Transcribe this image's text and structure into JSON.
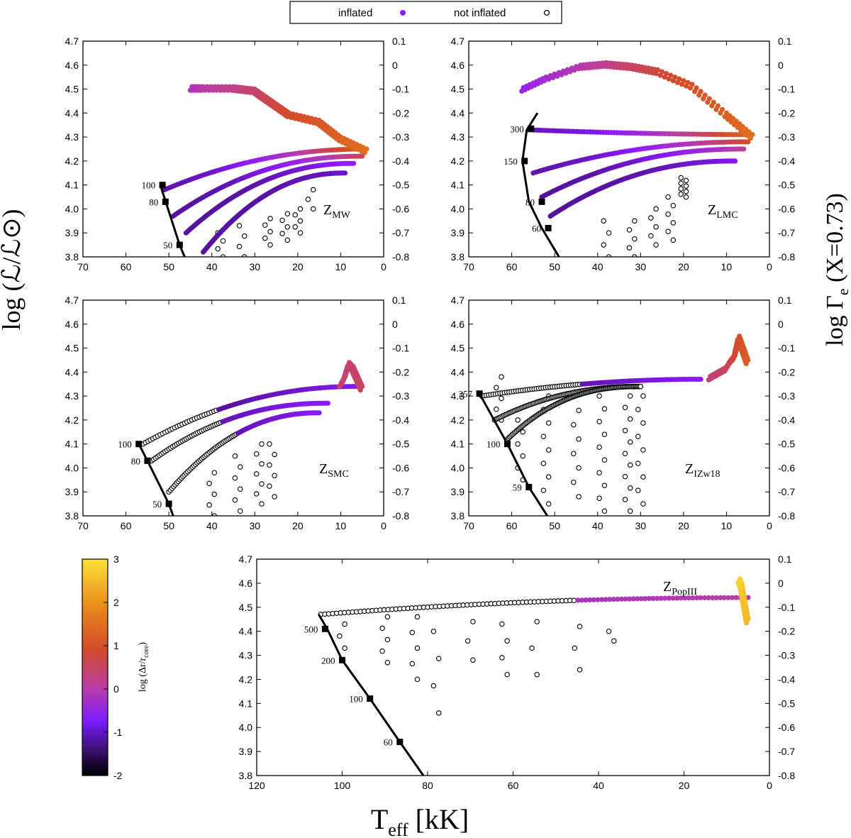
{
  "legend": {
    "inflated": "inflated",
    "not_inflated": "not inflated"
  },
  "axis_labels": {
    "y_left": "log (ℒ/ℒ⊙)",
    "y_right_main": "log Γ",
    "y_right_sub": "e",
    "y_right_tail": " (X=0.73)",
    "x_main": "T",
    "x_sub": "eff",
    "x_tail": " [kK]"
  },
  "colorbar": {
    "label_main": "log (Δr/r",
    "label_sub": "core",
    "label_tail": ")",
    "ticks": [
      "3",
      "2",
      "1",
      "0",
      "-1",
      "-2"
    ],
    "range": [
      -2,
      3
    ],
    "colors": [
      "#000000",
      "#3b0f70",
      "#8c1aff",
      "#b83ca8",
      "#d14a2b",
      "#e67e1a",
      "#fbe336"
    ]
  },
  "chart_data": [
    {
      "type": "scatter",
      "panel": "MW",
      "title_main": "Z",
      "title_sub": "MW",
      "xlim": [
        70,
        0
      ],
      "ylim": [
        3.8,
        4.7
      ],
      "x_ticks": [
        "70",
        "60",
        "50",
        "40",
        "30",
        "20",
        "10",
        "0"
      ],
      "y_ticks": [
        "3.8",
        "3.9",
        "4.0",
        "4.1",
        "4.2",
        "4.3",
        "4.4",
        "4.5",
        "4.6",
        "4.7"
      ],
      "y2_ticks": [
        "-0.8",
        "-0.7",
        "-0.6",
        "-0.5",
        "-0.4",
        "-0.3",
        "-0.2",
        "-0.1",
        "0",
        "0.1"
      ],
      "zams": {
        "x": [
          52,
          47.5,
          44
        ],
        "y": [
          4.1,
          3.85,
          3.7
        ]
      },
      "zams_markers": [
        {
          "label": "100",
          "x": 51.5,
          "y": 4.1
        },
        {
          "label": "80",
          "x": 50.8,
          "y": 4.03
        },
        {
          "label": "50",
          "x": 47.5,
          "y": 3.85
        }
      ],
      "tracks": [
        {
          "x0": 51,
          "y0": 4.08,
          "x1": 4,
          "y1": 4.25,
          "w": 0.25,
          "curv": 0.55,
          "c0": -1.1,
          "c1": 1.6
        },
        {
          "x0": 49,
          "y0": 3.97,
          "x1": 5,
          "y1": 4.22,
          "w": 0.32,
          "curv": 0.6,
          "c0": -1.2,
          "c1": 0.6
        },
        {
          "x0": 46,
          "y0": 3.9,
          "x1": 7,
          "y1": 4.19,
          "w": 0.38,
          "curv": 0.6,
          "c0": -1.2,
          "c1": -0.6
        },
        {
          "x0": 42,
          "y0": 3.82,
          "x1": 9,
          "y1": 4.15,
          "w": 0.42,
          "curv": 0.6,
          "c0": -1.2,
          "c1": -1.0
        }
      ],
      "hook": {
        "x": [
          4,
          10,
          15,
          22,
          26,
          30,
          35,
          42,
          45
        ],
        "y": [
          4.25,
          4.3,
          4.37,
          4.4,
          4.45,
          4.5,
          4.51,
          4.51,
          4.51
        ],
        "c0": 1.6,
        "c1": -0.2
      },
      "open_columns": [
        {
          "x": 38,
          "y0": 3.8,
          "y1": 3.9,
          "n": 4
        },
        {
          "x": 33,
          "y0": 3.8,
          "y1": 3.93,
          "n": 4
        },
        {
          "x": 27,
          "y0": 3.85,
          "y1": 3.96,
          "n": 5
        },
        {
          "x": 23,
          "y0": 3.87,
          "y1": 3.98,
          "n": 5
        },
        {
          "x": 20,
          "y0": 3.9,
          "y1": 4.0,
          "n": 5
        },
        {
          "x": 17,
          "y0": 4.0,
          "y1": 4.08,
          "n": 3
        }
      ]
    },
    {
      "type": "scatter",
      "panel": "LMC",
      "title_main": "Z",
      "title_sub": "LMC",
      "xlim": [
        70,
        0
      ],
      "ylim": [
        3.8,
        4.7
      ],
      "x_ticks": [
        "70",
        "60",
        "50",
        "40",
        "30",
        "20",
        "10",
        "0"
      ],
      "y_ticks": [
        "3.8",
        "3.9",
        "4.0",
        "4.1",
        "4.2",
        "4.3",
        "4.4",
        "4.5",
        "4.6",
        "4.7"
      ],
      "y2_ticks": [
        "-0.8",
        "-0.7",
        "-0.6",
        "-0.5",
        "-0.4",
        "-0.3",
        "-0.2",
        "-0.1",
        "0",
        "0.1"
      ],
      "zams": {
        "x": [
          53,
          56,
          57.5,
          56.5,
          54
        ],
        "y": [
          3.92,
          4.03,
          4.2,
          4.33,
          4.4
        ]
      },
      "zams_tail": {
        "x": [
          53,
          49,
          46
        ],
        "y": [
          3.92,
          3.8,
          3.7
        ]
      },
      "zams_markers": [
        {
          "label": "300",
          "x": 55.5,
          "y": 4.335
        },
        {
          "label": "150",
          "x": 57,
          "y": 4.2
        },
        {
          "label": "80",
          "x": 53,
          "y": 4.03
        },
        {
          "label": "60",
          "x": 51.5,
          "y": 3.92
        }
      ],
      "tracks": [
        {
          "x0": 56,
          "y0": 4.33,
          "x1": 4,
          "y1": 4.31,
          "w": 0.3,
          "curv": 0.4,
          "c0": -1.0,
          "c1": 1.6
        },
        {
          "x0": 55,
          "y0": 4.15,
          "x1": 5,
          "y1": 4.28,
          "w": 0.3,
          "curv": 0.55,
          "c0": -1.1,
          "c1": 0.9
        },
        {
          "x0": 53,
          "y0": 4.05,
          "x1": 6,
          "y1": 4.25,
          "w": 0.35,
          "curv": 0.6,
          "c0": -1.2,
          "c1": 0.1
        },
        {
          "x0": 51,
          "y0": 3.97,
          "x1": 8,
          "y1": 4.2,
          "w": 0.4,
          "curv": 0.6,
          "c0": -1.2,
          "c1": -0.8
        }
      ],
      "hook": {
        "x": [
          4,
          10,
          18,
          26,
          32,
          38,
          44,
          52,
          58
        ],
        "y": [
          4.31,
          4.4,
          4.52,
          4.58,
          4.6,
          4.61,
          4.6,
          4.55,
          4.5
        ],
        "c0": 1.6,
        "c1": -0.6
      },
      "open_columns": [
        {
          "x": 38,
          "y0": 3.8,
          "y1": 3.95,
          "n": 4
        },
        {
          "x": 32,
          "y0": 3.8,
          "y1": 3.95,
          "n": 5
        },
        {
          "x": 27,
          "y0": 3.85,
          "y1": 4.0,
          "n": 5
        },
        {
          "x": 23,
          "y0": 3.87,
          "y1": 4.05,
          "n": 6
        },
        {
          "x": 20,
          "y0": 4.05,
          "y1": 4.13,
          "n": 8
        }
      ]
    },
    {
      "type": "scatter",
      "panel": "SMC",
      "title_main": "Z",
      "title_sub": "SMC",
      "xlim": [
        70,
        0
      ],
      "ylim": [
        3.8,
        4.7
      ],
      "x_ticks": [
        "70",
        "60",
        "50",
        "40",
        "30",
        "20",
        "10",
        "0"
      ],
      "y_ticks": [
        "3.8",
        "3.9",
        "4.0",
        "4.1",
        "4.2",
        "4.3",
        "4.4",
        "4.5",
        "4.6",
        "4.7"
      ],
      "y2_ticks": [
        "-0.8",
        "-0.7",
        "-0.6",
        "-0.5",
        "-0.4",
        "-0.3",
        "-0.2",
        "-0.1",
        "0",
        "0.1"
      ],
      "zams": {
        "x": [
          57,
          55,
          50,
          47
        ],
        "y": [
          4.1,
          4.03,
          3.85,
          3.7
        ]
      },
      "zams_markers": [
        {
          "label": "100",
          "x": 57,
          "y": 4.1
        },
        {
          "label": "80",
          "x": 55,
          "y": 4.03
        },
        {
          "label": "50",
          "x": 50,
          "y": 3.85
        }
      ],
      "tracks": [
        {
          "x0": 56,
          "y0": 4.1,
          "x1": 6,
          "y1": 4.34,
          "w": 0.35,
          "curv": 0.55,
          "c0": 9,
          "c1": -1.2
        },
        {
          "x0": 54,
          "y0": 4.03,
          "x1": 13,
          "y1": 4.27,
          "w": 0.4,
          "curv": 0.6,
          "c0": 9,
          "c1": -1.1
        },
        {
          "x0": 50,
          "y0": 3.9,
          "x1": 15,
          "y1": 4.23,
          "w": 0.45,
          "curv": 0.6,
          "c0": 9,
          "c1": -1.1
        }
      ],
      "hook": {
        "x": [
          5,
          6,
          7,
          8,
          9,
          10
        ],
        "y": [
          4.34,
          4.38,
          4.42,
          4.44,
          4.38,
          4.35
        ],
        "c0": 0.5,
        "c1": 0.4
      },
      "open_columns": [
        {
          "x": 40,
          "y0": 3.8,
          "y1": 3.98,
          "n": 5
        },
        {
          "x": 34,
          "y0": 3.82,
          "y1": 4.05,
          "n": 6
        },
        {
          "x": 29,
          "y0": 3.85,
          "y1": 4.1,
          "n": 7
        },
        {
          "x": 26,
          "y0": 3.88,
          "y1": 4.1,
          "n": 6
        }
      ]
    },
    {
      "type": "scatter",
      "panel": "IZw18",
      "title_main": "Z",
      "title_sub": "IZw18",
      "xlim": [
        70,
        0
      ],
      "ylim": [
        3.8,
        4.7
      ],
      "x_ticks": [
        "70",
        "60",
        "50",
        "40",
        "30",
        "20",
        "10",
        "0"
      ],
      "y_ticks": [
        "3.8",
        "3.9",
        "4.0",
        "4.1",
        "4.2",
        "4.3",
        "4.4",
        "4.5",
        "4.6",
        "4.7"
      ],
      "y2_ticks": [
        "-0.8",
        "-0.7",
        "-0.6",
        "-0.5",
        "-0.4",
        "-0.3",
        "-0.2",
        "-0.1",
        "0",
        "0.1"
      ],
      "zams": {
        "x": [
          67.5,
          61,
          56,
          51,
          48
        ],
        "y": [
          4.31,
          4.1,
          3.92,
          3.78,
          3.7
        ]
      },
      "zams_markers": [
        {
          "label": "257",
          "x": 67.5,
          "y": 4.31
        },
        {
          "label": "100",
          "x": 61,
          "y": 4.1
        },
        {
          "label": "59",
          "x": 56,
          "y": 3.92
        }
      ],
      "tracks": [
        {
          "x0": 67,
          "y0": 4.3,
          "x1": 16,
          "y1": 4.37,
          "w": 0.45,
          "curv": 0.5,
          "c0": 9,
          "c1": -1.1
        },
        {
          "x0": 64,
          "y0": 4.2,
          "x1": 30,
          "y1": 4.34,
          "w": 0.6,
          "curv": 0.6,
          "c0": 9,
          "c1": 9
        },
        {
          "x0": 61,
          "y0": 4.12,
          "x1": 30,
          "y1": 4.34,
          "w": 0.7,
          "curv": 0.7,
          "c0": 9,
          "c1": 9
        }
      ],
      "hook": {
        "x": [
          5,
          6,
          7,
          8,
          9,
          10,
          12,
          14
        ],
        "y": [
          4.45,
          4.5,
          4.55,
          4.47,
          4.45,
          4.42,
          4.4,
          4.38
        ],
        "c0": 1.3,
        "c1": 0.3
      },
      "open_columns": [
        {
          "x": 58,
          "y0": 3.95,
          "y1": 4.2,
          "n": 6
        },
        {
          "x": 52,
          "y0": 3.85,
          "y1": 4.3,
          "n": 9
        },
        {
          "x": 45,
          "y0": 3.88,
          "y1": 4.3,
          "n": 8
        },
        {
          "x": 39,
          "y0": 3.82,
          "y1": 4.3,
          "n": 10
        },
        {
          "x": 33,
          "y0": 3.82,
          "y1": 4.3,
          "n": 11
        },
        {
          "x": 30,
          "y0": 3.85,
          "y1": 4.3,
          "n": 9
        },
        {
          "x": 63,
          "y0": 4.2,
          "y1": 4.38,
          "n": 5
        }
      ]
    },
    {
      "type": "scatter",
      "panel": "PopIII",
      "title_main": "Z",
      "title_sub": "PopIII",
      "xlim": [
        120,
        0
      ],
      "ylim": [
        3.8,
        4.7
      ],
      "x_ticks": [
        "120",
        "100",
        "80",
        "60",
        "40",
        "20",
        "0"
      ],
      "y_ticks": [
        "3.8",
        "3.9",
        "4.0",
        "4.1",
        "4.2",
        "4.3",
        "4.4",
        "4.5",
        "4.6",
        "4.7"
      ],
      "y2_ticks": [
        "-0.8",
        "-0.7",
        "-0.6",
        "-0.5",
        "-0.4",
        "-0.3",
        "-0.2",
        "-0.1",
        "0",
        "0.1"
      ],
      "zams": {
        "x": [
          105.5,
          103.5,
          100,
          93.5,
          86.5,
          81
        ],
        "y": [
          4.47,
          4.41,
          4.28,
          4.12,
          3.94,
          3.8
        ]
      },
      "zams_markers": [
        {
          "label": "500",
          "x": 104,
          "y": 4.41
        },
        {
          "label": "200",
          "x": 100,
          "y": 4.28
        },
        {
          "label": "100",
          "x": 93.5,
          "y": 4.12
        },
        {
          "label": "60",
          "x": 86.5,
          "y": 3.94
        }
      ],
      "tracks": [
        {
          "x0": 105,
          "y0": 4.47,
          "x1": 5,
          "y1": 4.54,
          "w": 0.6,
          "curv": 0.5,
          "c0": 9,
          "c1": -0.2
        }
      ],
      "hook": {
        "x": [
          5,
          5.5,
          6,
          6.5,
          7
        ],
        "y": [
          4.45,
          4.5,
          4.55,
          4.6,
          4.62
        ],
        "c0": 2.5,
        "c1": 2.8
      },
      "open_columns": [
        {
          "x": 100,
          "y0": 4.33,
          "y1": 4.43,
          "n": 3
        },
        {
          "x": 90,
          "y0": 4.27,
          "y1": 4.46,
          "n": 5
        },
        {
          "x": 83,
          "y0": 4.2,
          "y1": 4.46,
          "n": 5
        },
        {
          "x": 78,
          "y0": 4.06,
          "y1": 4.4,
          "n": 4
        },
        {
          "x": 70,
          "y0": 4.28,
          "y1": 4.44,
          "n": 3
        },
        {
          "x": 62,
          "y0": 4.22,
          "y1": 4.43,
          "n": 4
        },
        {
          "x": 55,
          "y0": 4.22,
          "y1": 4.44,
          "n": 3
        },
        {
          "x": 45,
          "y0": 4.24,
          "y1": 4.42,
          "n": 3
        },
        {
          "x": 37,
          "y0": 4.36,
          "y1": 4.4,
          "n": 2
        }
      ]
    }
  ]
}
